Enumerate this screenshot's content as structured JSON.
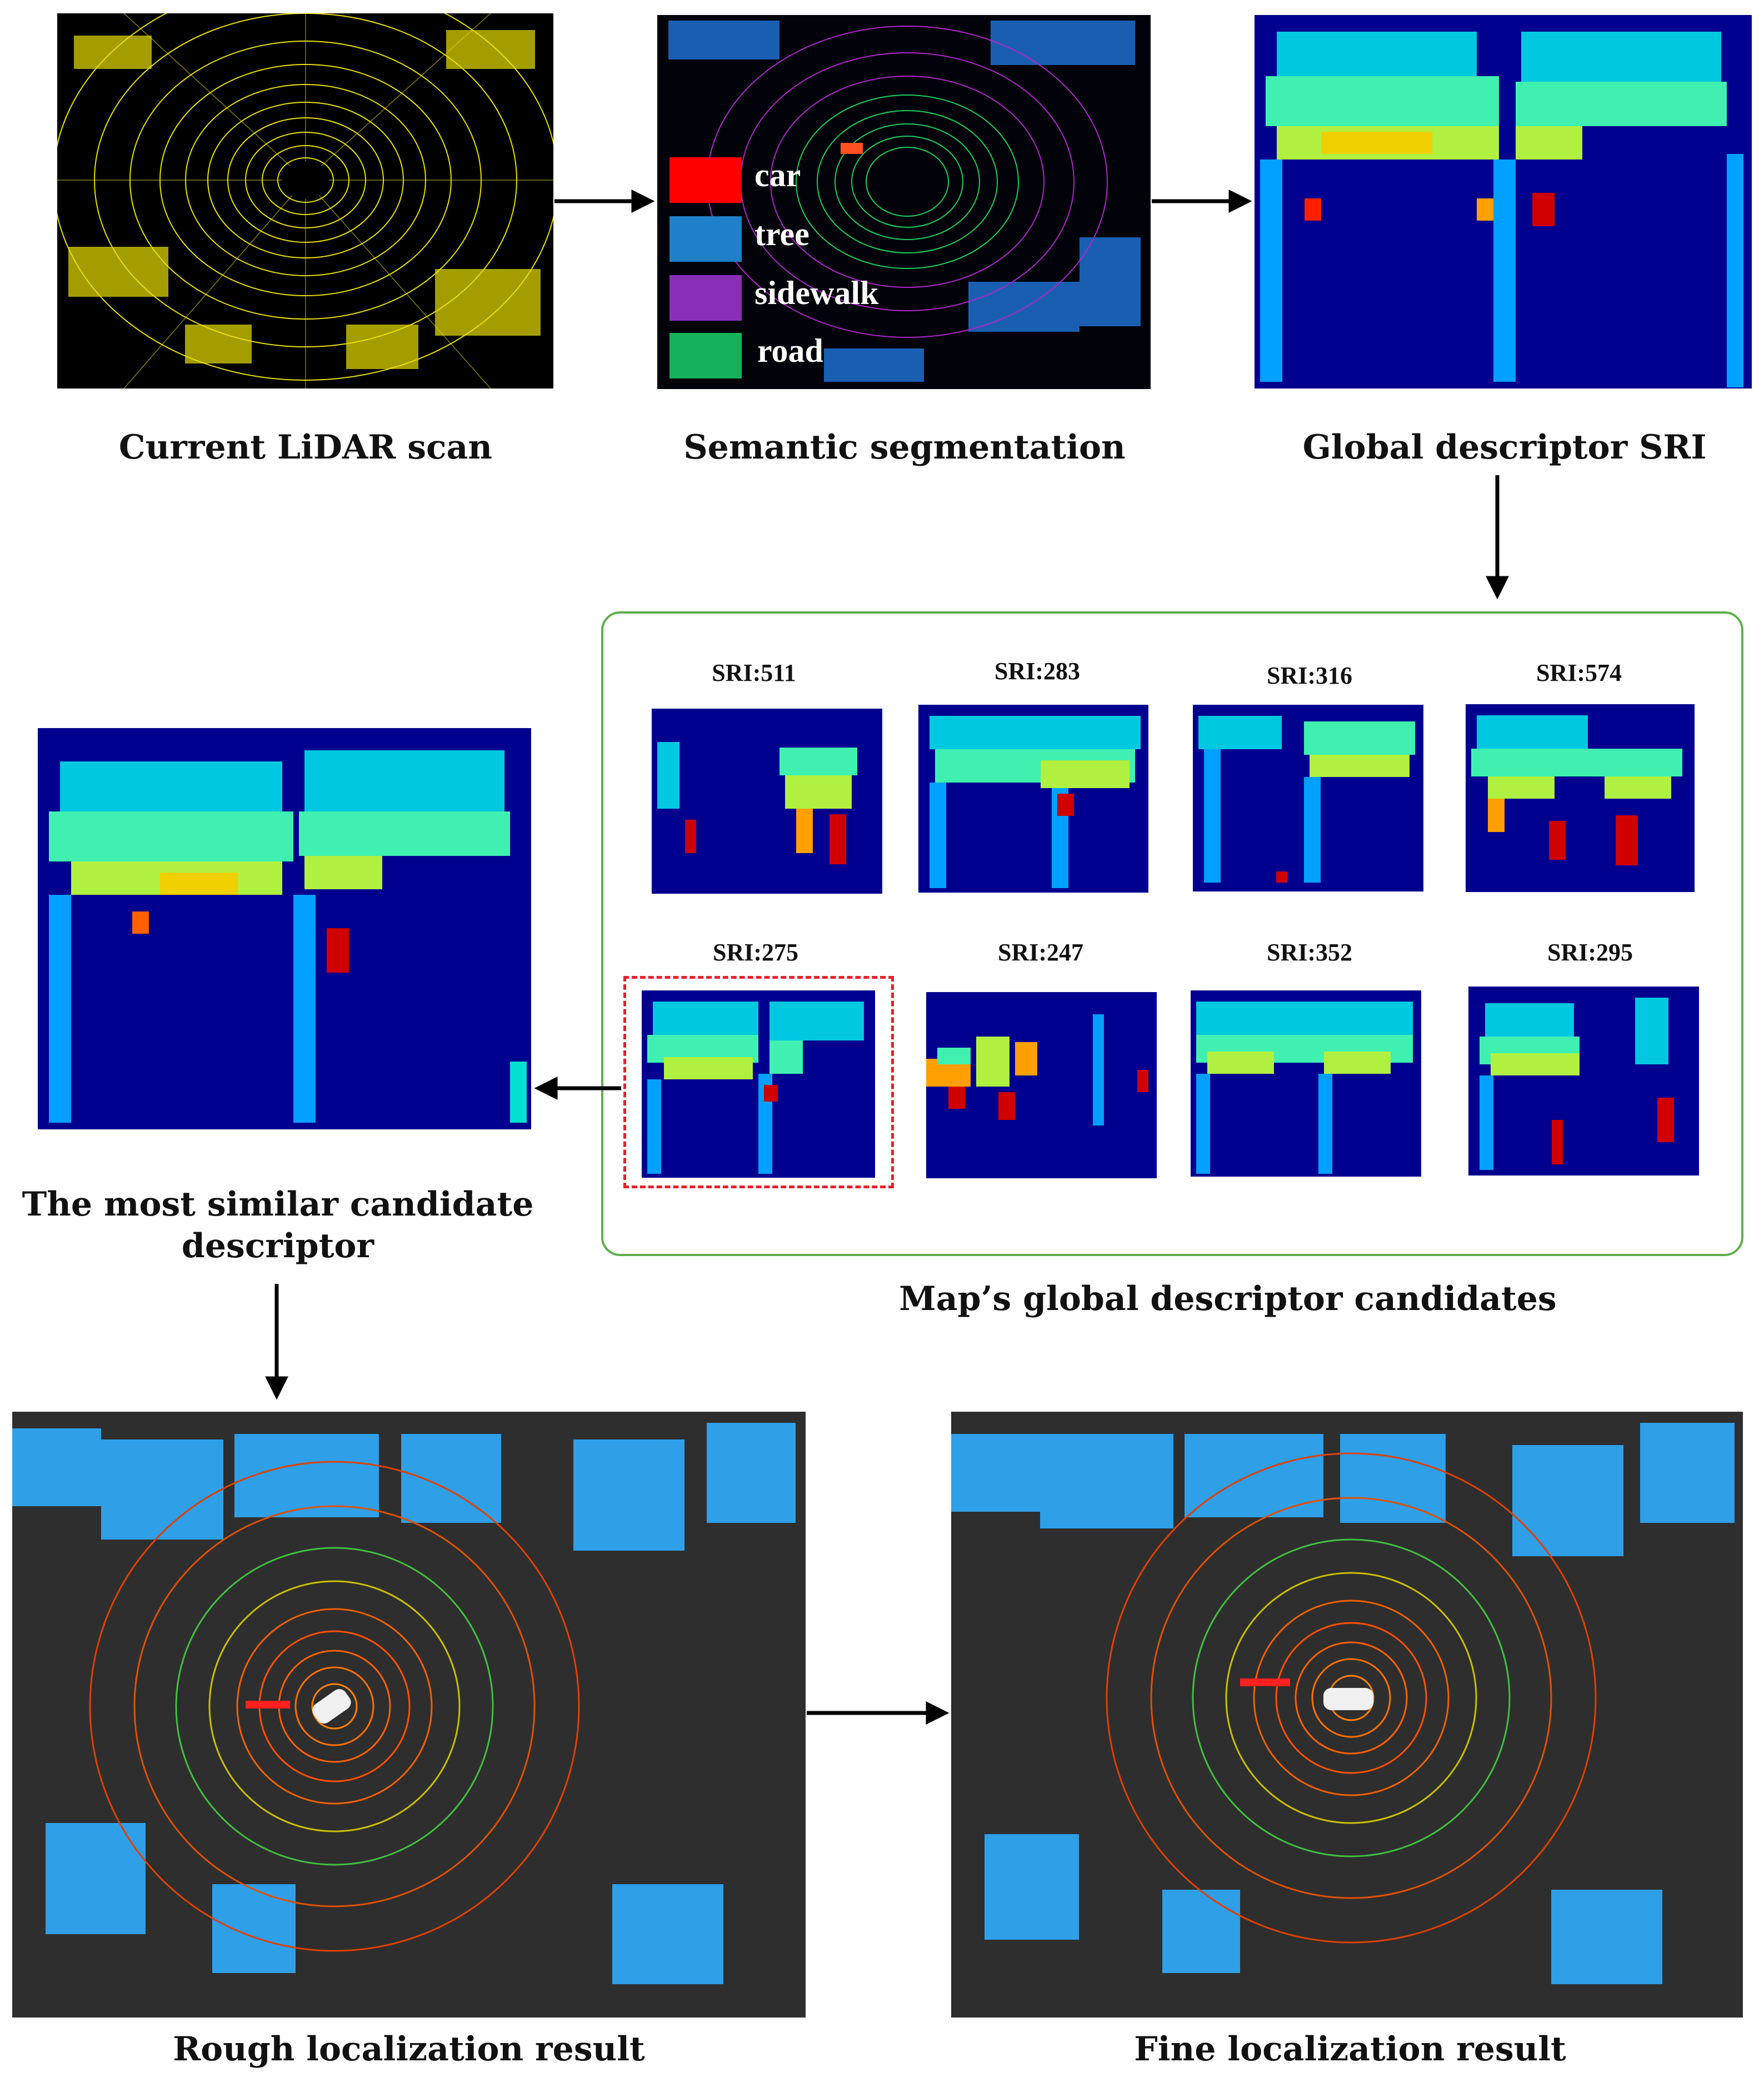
{
  "captions": {
    "lidar_scan": "Current LiDAR scan",
    "semantic_seg": "Semantic segmentation",
    "global_desc": "Global descriptor SRI",
    "most_similar": "The most similar candidate\ndescriptor",
    "map_candidates": "Map’s global descriptor candidates",
    "rough": "Rough localization result",
    "fine": "Fine localization result"
  },
  "legend": [
    {
      "label": "car",
      "color": "#ff0000"
    },
    {
      "label": "tree",
      "color": "#1f7fc8"
    },
    {
      "label": "sidewalk",
      "color": "#8a2fb5"
    },
    {
      "label": "road",
      "color": "#15b25a"
    }
  ],
  "candidates": {
    "row1": [
      "SRI:511",
      "SRI:283",
      "SRI:316",
      "SRI:574"
    ],
    "row2": [
      "SRI:275",
      "SRI:247",
      "SRI:352",
      "SRI:295"
    ],
    "selected": "SRI:275"
  },
  "colors": {
    "jet_background": "#00008f",
    "point_cloud_bg": "#2e2e2e",
    "lidar_yellow": "#e8e000",
    "candidate_border": "#5fae4a",
    "selection_dash": "#e8202a",
    "arrow": "#000000"
  }
}
